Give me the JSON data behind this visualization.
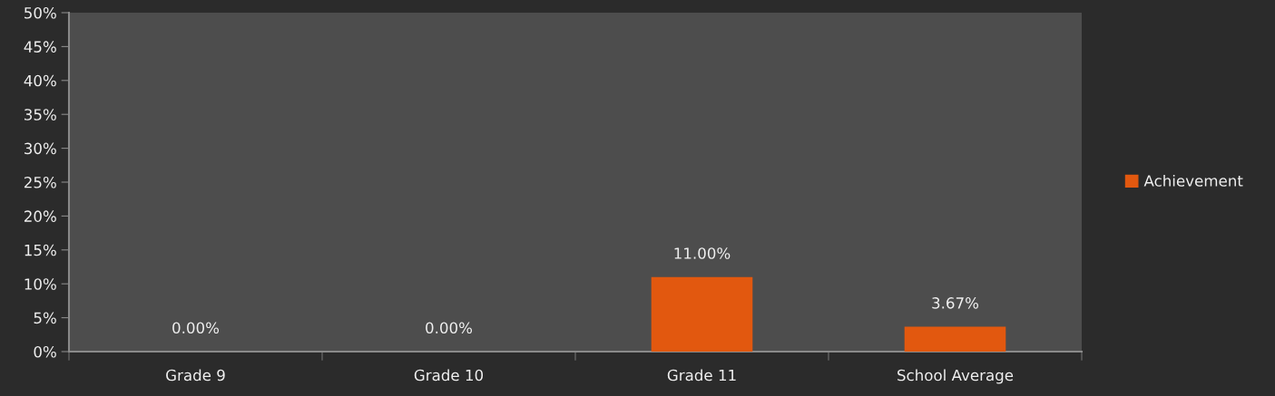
{
  "chart_data": {
    "type": "bar",
    "categories": [
      "Grade 9",
      "Grade 10",
      "Grade 11",
      "School Average"
    ],
    "series": [
      {
        "name": "Achievement",
        "color": "#e2580f",
        "values": [
          0,
          0,
          11,
          3.67
        ],
        "value_labels": [
          "0.00%",
          "0.00%",
          "11.00%",
          "3.67%"
        ]
      }
    ],
    "ylim": [
      0,
      50
    ],
    "yticks": [
      {
        "value": 0,
        "label": "0%"
      },
      {
        "value": 5,
        "label": "5%"
      },
      {
        "value": 10,
        "label": "10%"
      },
      {
        "value": 15,
        "label": "15%"
      },
      {
        "value": 20,
        "label": "20%"
      },
      {
        "value": 25,
        "label": "25%"
      },
      {
        "value": 30,
        "label": "30%"
      },
      {
        "value": 35,
        "label": "35%"
      },
      {
        "value": 40,
        "label": "40%"
      },
      {
        "value": 45,
        "label": "45%"
      },
      {
        "value": 50,
        "label": "50%"
      }
    ],
    "grid": false,
    "legend": "right"
  }
}
